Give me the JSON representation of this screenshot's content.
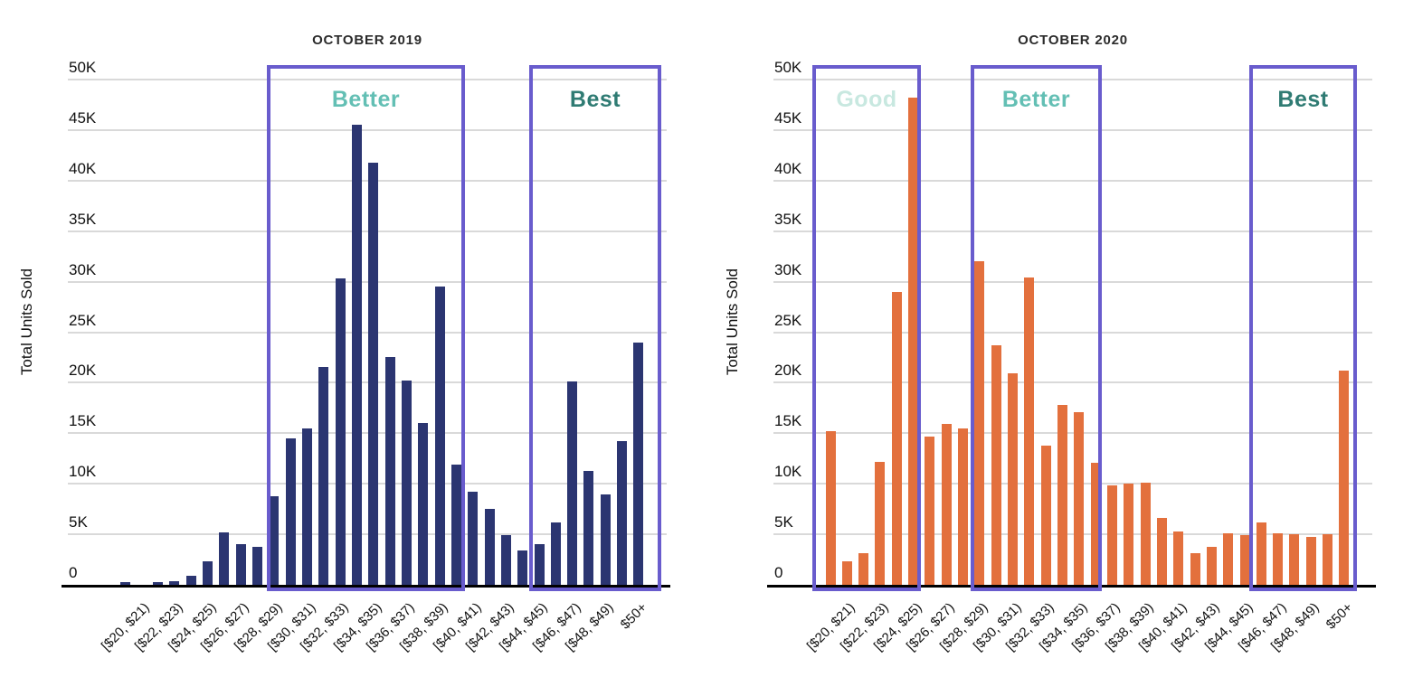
{
  "colors": {
    "background": "#ffffff",
    "bar_2019": "#2B3571",
    "bar_2020": "#E3703D",
    "zone_border": "#695CCD",
    "gridline": "#d9d9d9",
    "axis_line": "#000000",
    "title_text": "#2b2b2b",
    "tick_text": "#111111",
    "good_label": "#C8E8E0",
    "better_label": "#63BFB4",
    "best_label": "#2F7B73"
  },
  "y_axis": {
    "title": "Total Units Sold",
    "tick_labels": [
      "0",
      "5K",
      "10K",
      "15K",
      "20K",
      "25K",
      "30K",
      "35K",
      "40K",
      "45K",
      "50K"
    ]
  },
  "x_axis": {
    "tick_labels": [
      "[$20, $21)",
      "[$22, $23)",
      "[$24, $25)",
      "[$26, $27)",
      "[$28, $29)",
      "[$30, $31)",
      "[$32, $33)",
      "[$34, $35)",
      "[$36, $37)",
      "[$38, $39)",
      "[$40, $41)",
      "[$42, $43)",
      "[$44, $45)",
      "[$46, $47)",
      "[$48, $49)",
      "$50+"
    ]
  },
  "chart_data": [
    {
      "type": "bar",
      "title": "OCTOBER 2019",
      "ylabel": "Total Units Sold",
      "ylim": [
        0,
        50000
      ],
      "grid": "horizontal-5K",
      "legend": "none",
      "bar_color": "#2B3571",
      "categories": [
        "",
        "[$20, $21)",
        "",
        "[$22, $23)",
        "",
        "[$24, $25)",
        "",
        "[$26, $27)",
        "",
        "[$28, $29)",
        "",
        "[$30, $31)",
        "",
        "[$32, $33)",
        "",
        "[$34, $35)",
        "",
        "[$36, $37)",
        "",
        "[$38, $39)",
        "",
        "[$40, $41)",
        "",
        "[$42, $43)",
        "",
        "[$44, $45)",
        "",
        "[$46, $47)",
        "",
        "[$48, $49)",
        "",
        "$50+"
      ],
      "values": [
        300,
        0,
        300,
        350,
        900,
        2300,
        5200,
        4000,
        3800,
        8800,
        14500,
        15500,
        21600,
        30300,
        45500,
        41800,
        22500,
        20200,
        16000,
        29500,
        11900,
        9200,
        7500,
        4900,
        3400,
        4000,
        6200,
        20100,
        11300,
        8900,
        14200,
        24000
      ],
      "zones": [
        {
          "label": "Better",
          "text_color": "#63BFB4",
          "bins": [
            10,
            21
          ]
        },
        {
          "label": "Best",
          "text_color": "#2F7B73",
          "bins": [
            26,
            32
          ]
        }
      ]
    },
    {
      "type": "bar",
      "title": "OCTOBER 2020",
      "ylabel": "Total Units Sold",
      "ylim": [
        0,
        50000
      ],
      "grid": "horizontal-5K",
      "legend": "none",
      "bar_color": "#E3703D",
      "categories": [
        "",
        "[$20, $21)",
        "",
        "[$22, $23)",
        "",
        "[$24, $25)",
        "",
        "[$26, $27)",
        "",
        "[$28, $29)",
        "",
        "[$30, $31)",
        "",
        "[$32, $33)",
        "",
        "[$34, $35)",
        "",
        "[$36, $37)",
        "",
        "[$38, $39)",
        "",
        "[$40, $41)",
        "",
        "[$42, $43)",
        "",
        "[$44, $45)",
        "",
        "[$46, $47)",
        "",
        "[$48, $49)",
        "",
        "$50+"
      ],
      "values": [
        15200,
        2300,
        3100,
        12200,
        29000,
        48200,
        14700,
        15900,
        15500,
        32000,
        23700,
        20900,
        30400,
        13800,
        17800,
        17100,
        12100,
        9800,
        10000,
        10100,
        6600,
        5300,
        3100,
        3800,
        5100,
        4900,
        6200,
        5100,
        5000,
        4700,
        5000,
        21200
      ],
      "zones": [
        {
          "label": "Good",
          "text_color": "#C8E8E0",
          "bins": [
            1,
            6
          ]
        },
        {
          "label": "Better",
          "text_color": "#63BFB4",
          "bins": [
            10,
            17
          ]
        },
        {
          "label": "Best",
          "text_color": "#2F7B73",
          "bins": [
            27,
            32
          ]
        }
      ]
    }
  ]
}
